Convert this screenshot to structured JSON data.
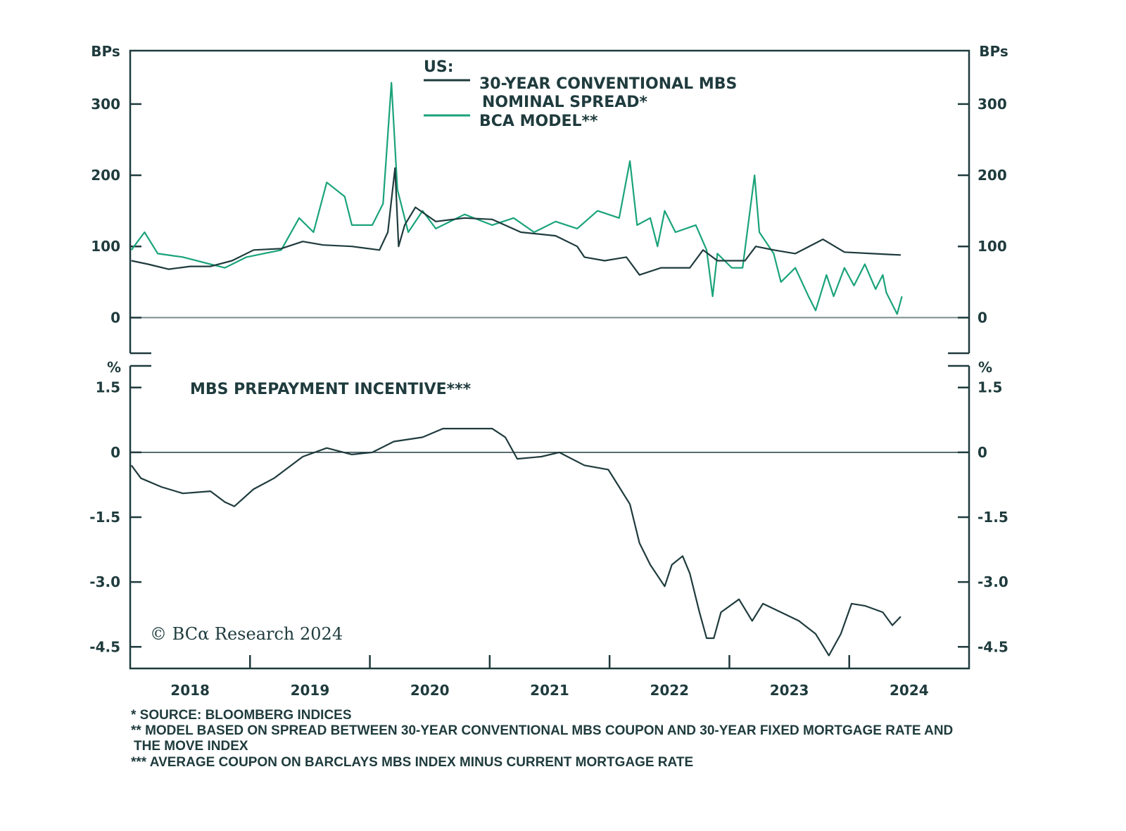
{
  "chart_data": [
    {
      "type": "line",
      "panel": "top",
      "ylabel": "BPs",
      "ylim": [
        -50,
        375
      ],
      "yticks": [
        0,
        100,
        200,
        300
      ],
      "xlim": [
        2018,
        2025
      ],
      "grid": false,
      "legend": {
        "placement": "top-center",
        "heading": "US:",
        "entries": [
          "30-YEAR CONVENTIONAL MBS",
          "NOMINAL SPREAD*",
          "BCA MODEL**"
        ]
      },
      "series": [
        {
          "name": "30-YEAR CONVENTIONAL MBS NOMINAL SPREAD*",
          "color": "#1f3b3d",
          "x": [
            2018.01,
            2018.15,
            2018.32,
            2018.5,
            2018.67,
            2018.85,
            2019.03,
            2019.26,
            2019.44,
            2019.61,
            2019.85,
            2020.08,
            2020.15,
            2020.21,
            2020.24,
            2020.29,
            2020.38,
            2020.55,
            2020.79,
            2021.02,
            2021.26,
            2021.55,
            2021.73,
            2021.79,
            2021.96,
            2022.14,
            2022.25,
            2022.43,
            2022.67,
            2022.78,
            2022.9,
            2023.13,
            2023.22,
            2023.37,
            2023.55,
            2023.78,
            2023.96,
            2024.19,
            2024.43
          ],
          "y": [
            80,
            75,
            68,
            72,
            72,
            80,
            95,
            97,
            107,
            102,
            100,
            95,
            120,
            210,
            100,
            130,
            155,
            135,
            140,
            138,
            120,
            115,
            100,
            85,
            80,
            85,
            60,
            70,
            70,
            95,
            80,
            80,
            100,
            95,
            90,
            110,
            92,
            90,
            88
          ]
        },
        {
          "name": "BCA MODEL**",
          "color": "#1aa37a",
          "x": [
            2018.01,
            2018.12,
            2018.23,
            2018.44,
            2018.67,
            2018.79,
            2018.97,
            2019.26,
            2019.41,
            2019.53,
            2019.64,
            2019.79,
            2019.85,
            2020.02,
            2020.11,
            2020.18,
            2020.23,
            2020.32,
            2020.44,
            2020.55,
            2020.79,
            2021.02,
            2021.2,
            2021.37,
            2021.55,
            2021.73,
            2021.9,
            2022.08,
            2022.17,
            2022.23,
            2022.34,
            2022.4,
            2022.46,
            2022.55,
            2022.72,
            2022.81,
            2022.86,
            2022.9,
            2023.02,
            2023.11,
            2023.21,
            2023.25,
            2023.37,
            2023.43,
            2023.55,
            2023.66,
            2023.72,
            2023.81,
            2023.87,
            2023.96,
            2024.04,
            2024.13,
            2024.22,
            2024.28,
            2024.31,
            2024.4,
            2024.44
          ],
          "y": [
            95,
            120,
            90,
            85,
            75,
            70,
            85,
            95,
            140,
            120,
            190,
            170,
            130,
            130,
            160,
            330,
            180,
            120,
            150,
            125,
            145,
            130,
            140,
            120,
            135,
            125,
            150,
            140,
            220,
            130,
            140,
            100,
            150,
            120,
            130,
            95,
            30,
            90,
            70,
            70,
            200,
            120,
            90,
            50,
            70,
            30,
            10,
            60,
            30,
            70,
            45,
            75,
            40,
            60,
            35,
            5,
            30
          ]
        }
      ]
    },
    {
      "type": "line",
      "panel": "bottom",
      "title": "MBS PREPAYMENT INCENTIVE***",
      "ylabel": "%",
      "ylim": [
        -5.0,
        2.0
      ],
      "yticks": [
        1.5,
        0,
        -1.5,
        -3.0,
        -4.5
      ],
      "ytick_labels": [
        "1.5",
        "0",
        "-1.5",
        "-3.0",
        "-4.5"
      ],
      "xlim": [
        2018,
        2025
      ],
      "xtick_labels": [
        "2018",
        "2019",
        "2020",
        "2021",
        "2022",
        "2023",
        "2024"
      ],
      "grid": false,
      "series": [
        {
          "color": "#1f3b3d",
          "x": [
            2018.01,
            2018.09,
            2018.26,
            2018.44,
            2018.67,
            2018.79,
            2018.87,
            2019.03,
            2019.2,
            2019.44,
            2019.64,
            2019.85,
            2020.02,
            2020.2,
            2020.44,
            2020.61,
            2021.02,
            2021.13,
            2021.23,
            2021.43,
            2021.58,
            2021.79,
            2021.99,
            2022.08,
            2022.17,
            2022.25,
            2022.34,
            2022.46,
            2022.52,
            2022.61,
            2022.67,
            2022.75,
            2022.81,
            2022.87,
            2022.93,
            2023.08,
            2023.19,
            2023.28,
            2023.43,
            2023.58,
            2023.72,
            2023.83,
            2023.93,
            2024.02,
            2024.13,
            2024.28,
            2024.36,
            2024.43
          ],
          "y": [
            -0.3,
            -0.6,
            -0.8,
            -0.95,
            -0.9,
            -1.15,
            -1.25,
            -0.85,
            -0.6,
            -0.1,
            0.1,
            -0.05,
            0.0,
            0.25,
            0.35,
            0.55,
            0.55,
            0.35,
            -0.15,
            -0.1,
            0.0,
            -0.3,
            -0.4,
            -0.8,
            -1.2,
            -2.1,
            -2.6,
            -3.1,
            -2.6,
            -2.4,
            -2.8,
            -3.7,
            -4.3,
            -4.3,
            -3.7,
            -3.4,
            -3.9,
            -3.5,
            -3.7,
            -3.9,
            -4.2,
            -4.7,
            -4.2,
            -3.5,
            -3.55,
            -3.7,
            -4.0,
            -3.8
          ]
        }
      ]
    }
  ],
  "watermark": "© BCα Research 2024",
  "footnotes": [
    "* SOURCE: BLOOMBERG INDICES",
    "** MODEL BASED ON SPREAD BETWEEN 30-YEAR CONVENTIONAL MBS COUPON AND 30-YEAR FIXED MORTGAGE RATE AND",
    "THE MOVE INDEX",
    "*** AVERAGE COUPON ON BARCLAYS MBS INDEX MINUS CURRENT MORTGAGE RATE"
  ]
}
